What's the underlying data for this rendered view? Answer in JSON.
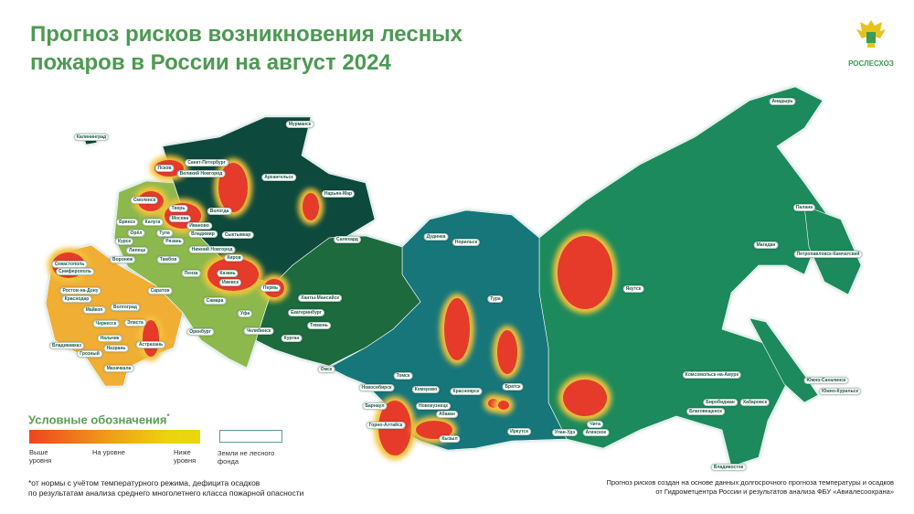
{
  "header": {
    "title_line1": "Прогноз рисков возникновения лесных",
    "title_line2": "пожаров в России на август 2024"
  },
  "logo": {
    "text": "РОСЛЕСХОЗ",
    "icon": "double-headed-eagle-emblem"
  },
  "legend": {
    "title": "Условные обозначения",
    "asterisk": "*",
    "above": "Выше уровня",
    "at": "На уровне",
    "below": "Ниже уровня",
    "non_forest": "Земли не лесного фонда",
    "colors": {
      "above": "#f0441e",
      "at": "#f09a1a",
      "below": "#e8d80c"
    }
  },
  "footnote": {
    "line1": "*от нормы с учётом температурного режима, дефицита осадков",
    "line2": "по результатам анализа среднего многолетнего класса пожарной опасности"
  },
  "source": {
    "line1": "Прогноз рисков создан на основе данных долгосрочного прогноза температуры и осадков",
    "line2": "от Гидрометцентра России и результатов анализа ФБУ «Авиалесоохрана»"
  },
  "region_colors": {
    "northwest": "#0c4a3c",
    "urals": "#1b6a3e",
    "siberia": "#13767a",
    "far_east": "#1f8a5c",
    "central": "#8cb84e",
    "south": "#f0ae34",
    "hotspot": "#e63b2a"
  },
  "cities": [
    "Калининград",
    "Мурманск",
    "Санкт-Петербург",
    "Псков",
    "Великий Новгород",
    "Архангельск",
    "Нарьян-Мар",
    "Смоленск",
    "Тверь",
    "Вологда",
    "Брянск",
    "Калуга",
    "Москва",
    "Иваново",
    "Орёл",
    "Тула",
    "Владимир",
    "Курск",
    "Рязань",
    "Сыктывкар",
    "Липецк",
    "Воронеж",
    "Тамбов",
    "Нижний Новгород",
    "Киров",
    "Севастополь",
    "Симферополь",
    "Пенза",
    "Казань",
    "Ижевск",
    "Пермь",
    "Ростов-на-Дону",
    "Саратов",
    "Краснодар",
    "Самара",
    "Майкоп",
    "Волгоград",
    "Уфа",
    "Ханты-Мансийск",
    "Екатеринбург",
    "Тюмень",
    "Черкесск",
    "Элиста",
    "Оренбург",
    "Челябинск",
    "Курган",
    "Нальчик",
    "Владикавказ",
    "Назрань",
    "Астрахань",
    "Грозный",
    "Махачкала",
    "Салехард",
    "Дудинка",
    "Норильск",
    "Тура",
    "Омск",
    "Томск",
    "Новосибирск",
    "Кемерово",
    "Красноярск",
    "Братск",
    "Барнаул",
    "Новокузнецк",
    "Абакан",
    "Горно-Алтайск",
    "Кызыл",
    "Иркутск",
    "Улан-Удэ",
    "Чита",
    "Агинское",
    "Якутск",
    "Магадан",
    "Анадырь",
    "Палана",
    "Петропавловск-Камчатский",
    "Комсомольск-на-Амуре",
    "Биробиджан",
    "Хабаровск",
    "Благовещенск",
    "Южно-Сахалинск",
    "Южно-Курильск",
    "Владивосток"
  ]
}
